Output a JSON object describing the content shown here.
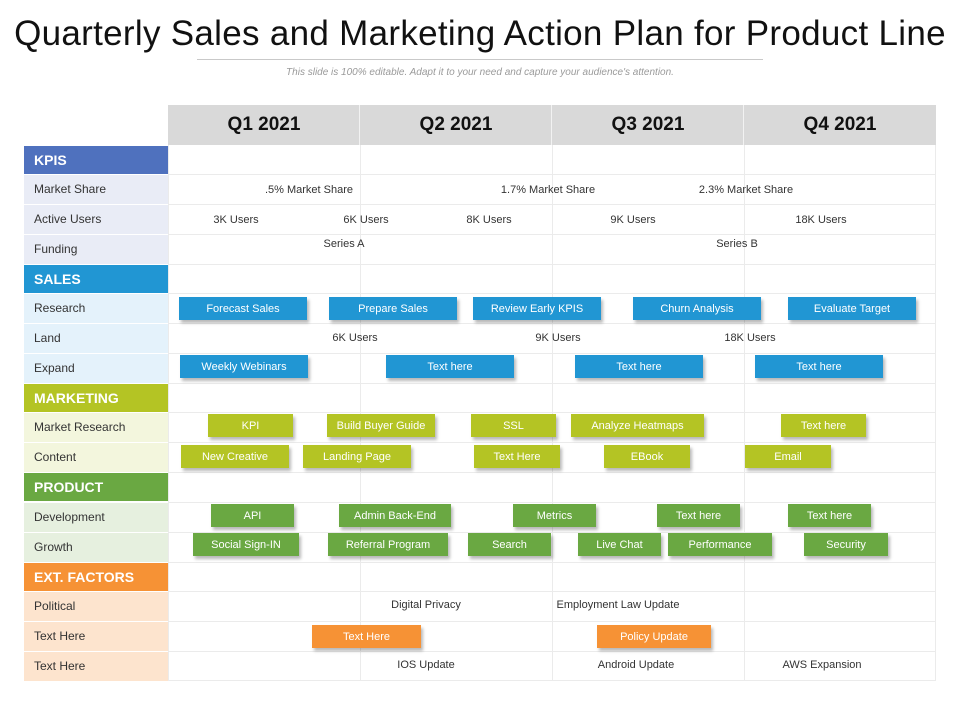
{
  "title": "Quarterly Sales and Marketing Action Plan for Product Line",
  "subtitle": "This slide is 100% editable. Adapt it to your need and capture your audience's attention.",
  "quarters": [
    "Q1 2021",
    "Q2 2021",
    "Q3 2021",
    "Q4 2021"
  ],
  "colors": {
    "kpis_head": "#4f71be",
    "kpis_row": "#e9ecf6",
    "sales_head": "#2196d3",
    "sales_row": "#e4f2fb",
    "marketing_head": "#b4c424",
    "marketing_row": "#f3f6dd",
    "product_head": "#6aa842",
    "product_row": "#e6f0df",
    "ext_head": "#f69235",
    "ext_row": "#fde4ce"
  },
  "sections": {
    "kpis": "KPIS",
    "sales": "SALES",
    "marketing": "MARKETING",
    "product": "PRODUCT",
    "ext": "EXT. FACTORS"
  },
  "rows": {
    "market_share": "Market Share",
    "active_users": "Active Users",
    "funding": "Funding",
    "research": "Research",
    "land": "Land",
    "expand": "Expand",
    "market_research": "Market Research",
    "content": "Content",
    "development": "Development",
    "growth": "Growth",
    "political": "Political",
    "text_here_1": "Text Here",
    "text_here_2": "Text Here"
  },
  "cells": {
    "market_share": [
      ".5% Market Share",
      "1.7% Market Share",
      "2.3% Market Share"
    ],
    "active_users": [
      "3K Users",
      "6K Users",
      "8K Users",
      "9K Users",
      "18K Users"
    ],
    "funding": [
      "Series A",
      "Series B"
    ],
    "land": [
      "6K Users",
      "9K Users",
      "18K Users"
    ],
    "political": [
      "Digital  Privacy",
      "Employment  Law Update"
    ],
    "text_here_2": [
      "IOS Update",
      "Android Update",
      "AWS Expansion"
    ]
  },
  "bars": {
    "research": [
      "Forecast Sales",
      "Prepare Sales",
      "Review Early  KPIS",
      "Churn Analysis",
      "Evaluate Target"
    ],
    "expand": [
      "Weekly Webinars",
      "Text here",
      "Text here",
      "Text here"
    ],
    "market_research": [
      "KPI",
      "Build Buyer Guide",
      "SSL",
      "Analyze Heatmaps",
      "Text here"
    ],
    "content": [
      "New Creative",
      "Landing Page",
      "Text Here",
      "EBook",
      "Email"
    ],
    "development": [
      "API",
      "Admin Back-End",
      "Metrics",
      "Text here",
      "Text here"
    ],
    "growth": [
      "Social Sign-IN",
      "Referral Program",
      "Search",
      "Live Chat",
      "Performance",
      "Security"
    ],
    "text_here_1": [
      "Text Here",
      "Policy Update"
    ]
  }
}
